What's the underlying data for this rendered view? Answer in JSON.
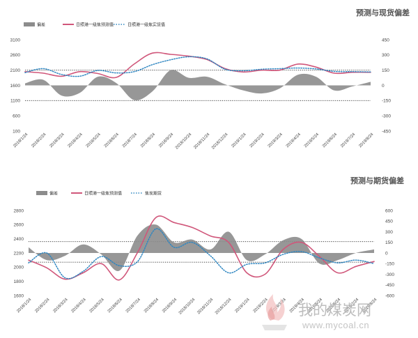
{
  "chart_data": [
    {
      "type": "line",
      "title": "预测与现货偏差",
      "x": [
        "2018/1/24",
        "2018/2/24",
        "2018/3/24",
        "2018/4/24",
        "2018/5/24",
        "2018/6/24",
        "2018/7/24",
        "2018/8/24",
        "2018/9/24",
        "2018/10/24",
        "2018/11/24",
        "2018/12/24",
        "2019/1/24",
        "2019/2/24",
        "2019/3/24",
        "2019/4/24",
        "2019/5/24",
        "2019/6/24",
        "2019/7/24",
        "2019/8/24"
      ],
      "left_axis": {
        "ticks": [
          3100,
          2600,
          2100,
          1600,
          1100,
          600,
          100
        ],
        "ylim": [
          100,
          3100
        ]
      },
      "right_axis": {
        "ticks": [
          450,
          300,
          150,
          0,
          -150,
          -300,
          -450
        ],
        "ylim": [
          -450,
          450
        ]
      },
      "reference_lines": [
        2100,
        1100
      ],
      "colors": {
        "deviation": "#8c8c8c",
        "forecast": "#d0567a",
        "actual": "#2e86c1"
      },
      "series": [
        {
          "name": "偏差",
          "kind": "area",
          "axis": "right",
          "values": [
            20,
            55,
            -100,
            -75,
            85,
            25,
            -145,
            -60,
            150,
            75,
            85,
            10,
            -50,
            -80,
            -30,
            105,
            85,
            -50,
            -10,
            35
          ]
        },
        {
          "name": "日照港一级焦预测值",
          "kind": "line",
          "axis": "left",
          "values": [
            2050,
            2000,
            1900,
            2050,
            1990,
            1860,
            2300,
            2660,
            2620,
            2560,
            2450,
            2150,
            2040,
            2100,
            2100,
            2300,
            2200,
            2000,
            2030,
            2030
          ]
        },
        {
          "name": "日照港一级焦实货值",
          "kind": "dotted",
          "axis": "left",
          "values": [
            2020,
            2150,
            1960,
            1900,
            2090,
            2010,
            2050,
            2280,
            2440,
            2540,
            2470,
            2130,
            2080,
            2130,
            2150,
            2170,
            2140,
            2060,
            2050,
            2040
          ]
        }
      ]
    },
    {
      "type": "line",
      "title": "预测与期货偏差",
      "x": [
        "2018/1/24",
        "2018/2/24",
        "2018/3/24",
        "2018/4/24",
        "2018/5/24",
        "2018/6/24",
        "2018/7/24",
        "2018/8/24",
        "2018/9/24",
        "2018/10/24",
        "2018/11/24",
        "2018/12/24",
        "2019/1/24",
        "2019/2/24",
        "2019/3/24",
        "2019/4/24",
        "2019/5/24",
        "2019/6/24",
        "2019/7/24",
        "2019/8/24"
      ],
      "left_axis": {
        "ticks": [
          2800,
          2600,
          2400,
          2200,
          2000,
          1800,
          1600
        ],
        "ylim": [
          1600,
          2800
        ]
      },
      "right_axis": {
        "ticks": [
          600,
          450,
          300,
          150,
          0,
          -150,
          -300,
          -450,
          -600
        ],
        "ylim": [
          -600,
          600
        ]
      },
      "reference_lines": [
        2360,
        2070
      ],
      "colors": {
        "deviation": "#8c8c8c",
        "forecast": "#d0567a",
        "futures": "#2e86c1"
      },
      "series": [
        {
          "name": "偏差",
          "kind": "area",
          "axis": "right",
          "values": [
            80,
            -100,
            -40,
            120,
            -20,
            -250,
            250,
            400,
            150,
            190,
            50,
            300,
            -100,
            -20,
            180,
            200,
            -150,
            -100,
            0,
            50
          ]
        },
        {
          "name": "日照港一级焦预测值",
          "kind": "line",
          "axis": "left",
          "values": [
            2100,
            1990,
            1830,
            1920,
            2050,
            1820,
            2210,
            2700,
            2630,
            2560,
            2440,
            2350,
            1920,
            1900,
            2250,
            2350,
            2150,
            1920,
            2010,
            2080
          ]
        },
        {
          "name": "焦炭期货",
          "kind": "dotted",
          "axis": "left",
          "values": [
            2060,
            2200,
            1850,
            1940,
            2150,
            2020,
            2080,
            2540,
            2280,
            2350,
            2160,
            1920,
            2040,
            2060,
            2180,
            2220,
            2130,
            2060,
            2100,
            2050
          ]
        }
      ]
    }
  ],
  "watermark": {
    "chinese": "我的煤炭网",
    "url": "www.mycoal.cn"
  }
}
